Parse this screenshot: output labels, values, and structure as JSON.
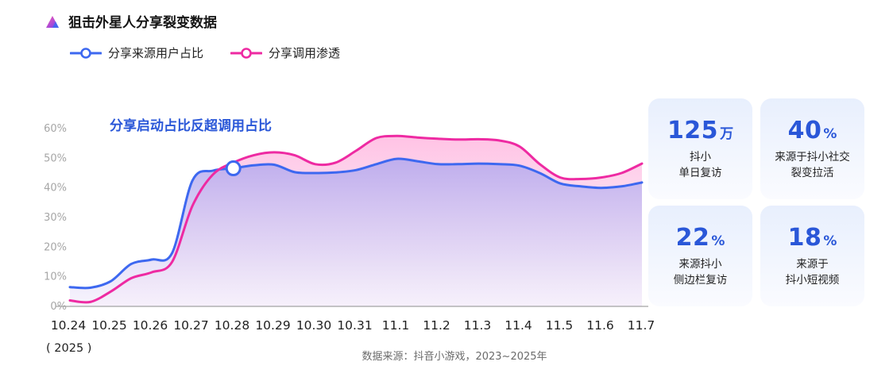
{
  "header": {
    "title": "狙击外星人分享裂变数据",
    "logo_icon": "brand-logo-icon"
  },
  "colors": {
    "blue": "#3d68f0",
    "pink": "#ee2aa2",
    "accent_text": "#2a57d8"
  },
  "chart_data": {
    "type": "line",
    "title": "狙击外星人分享裂变数据",
    "annotation": "分享启动占比反超调用占比",
    "x": [
      "10.24",
      "10.24",
      "10.25",
      "10.25",
      "10.26",
      "10.26",
      "10.27",
      "10.27",
      "10.28",
      "10.28",
      "10.29",
      "10.29",
      "10.30",
      "10.30",
      "10.31",
      "10.31",
      "11.1",
      "11.1",
      "11.2",
      "11.2",
      "11.3",
      "11.3",
      "11.4",
      "11.4",
      "11.5",
      "11.5",
      "11.6",
      "11.6",
      "11.7"
    ],
    "x_ticks": [
      "10.24",
      "10.25",
      "10.26",
      "10.27",
      "10.28",
      "10.29",
      "10.30",
      "10.31",
      "11.1",
      "11.2",
      "11.3",
      "11.4",
      "11.5",
      "11.6",
      "11.7"
    ],
    "x_note": "( 2025 )",
    "y_ticks": [
      "0%",
      "10%",
      "20%",
      "30%",
      "40%",
      "50%",
      "60%"
    ],
    "ylim": [
      0,
      60
    ],
    "grid": false,
    "legend_position": "top-left",
    "marker_index": 8,
    "series": [
      {
        "name": "分享来源用户占比",
        "color": "#3d68f0",
        "values": [
          6.5,
          6.3,
          8.5,
          14.3,
          15.8,
          18,
          42.5,
          45.8,
          46.6,
          47.6,
          47.8,
          45.3,
          45,
          45.2,
          46,
          48,
          49.8,
          49,
          48,
          48,
          48.2,
          48,
          47.5,
          45,
          41.5,
          40.5,
          40,
          40.5,
          41.8
        ]
      },
      {
        "name": "分享调用渗透",
        "color": "#ee2aa2",
        "values": [
          2,
          1.5,
          5,
          9.5,
          11.5,
          15,
          34,
          44.5,
          48.5,
          51,
          52,
          51,
          48,
          48.5,
          52.5,
          56.8,
          57.5,
          57,
          56.6,
          56.3,
          56.4,
          56,
          54,
          48,
          43.5,
          43,
          43.5,
          45,
          48.2
        ]
      }
    ]
  },
  "stats": [
    {
      "value": "125",
      "unit": "万",
      "lines": [
        "抖小",
        "单日复访"
      ]
    },
    {
      "value": "40",
      "unit": "%",
      "lines": [
        "来源于抖小社交",
        "裂变拉活"
      ]
    },
    {
      "value": "22",
      "unit": "%",
      "lines": [
        "来源抖小",
        "侧边栏复访"
      ]
    },
    {
      "value": "18",
      "unit": "%",
      "lines": [
        "来源于",
        "抖小短视频"
      ]
    }
  ],
  "source": "数据来源：抖音小游戏，2023~2025年"
}
